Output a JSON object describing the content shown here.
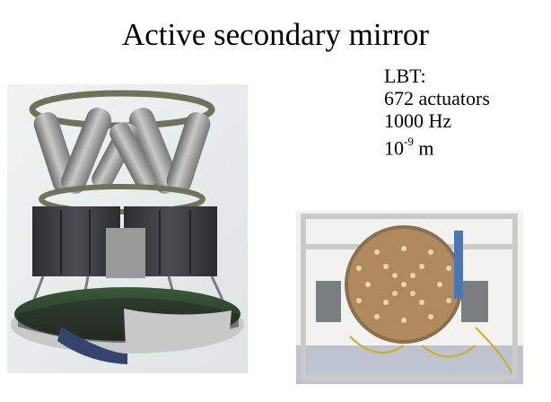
{
  "slide": {
    "title": "Active secondary mirror",
    "specs": {
      "name": "LBT:",
      "actuators": "672 actuators",
      "frequency": "1000 Hz",
      "precision_base": "10",
      "precision_exp": "-9",
      "precision_unit": " m"
    }
  },
  "figures": {
    "left": "hexapod-mirror-cad-icon",
    "right": "mirror-actuator-photo-icon"
  },
  "colors": {
    "background": "#ffffff",
    "text": "#000000",
    "hexapod_ring": "#6f735a",
    "hexapod_leg": "#9a9a9a",
    "housing": "#3a3c3f",
    "actuator_face": "#b08a5c",
    "photo_frame": "#c9cbc7"
  }
}
